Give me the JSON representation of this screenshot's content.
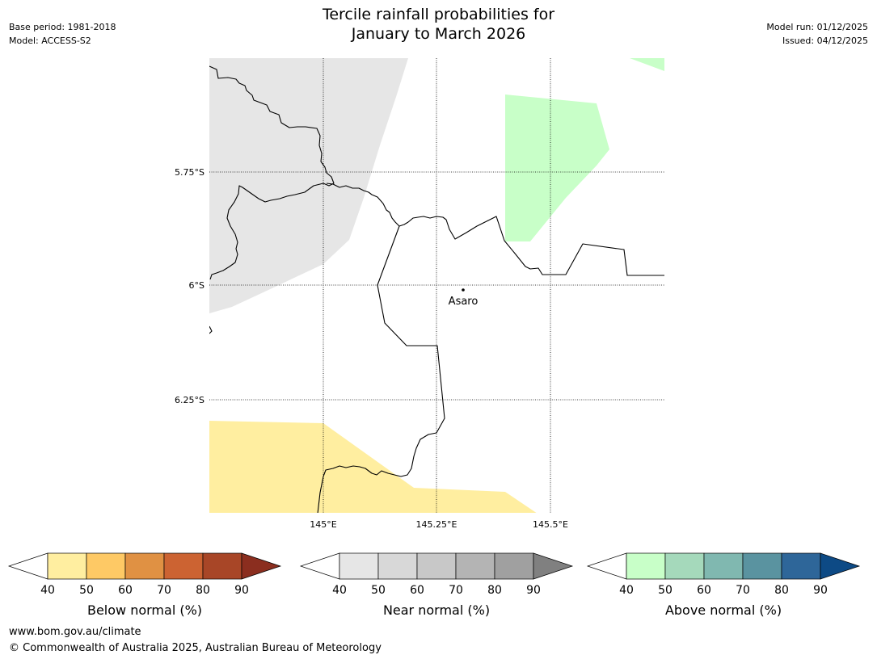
{
  "header": {
    "title_line1": "Tercile rainfall probabilities for",
    "title_line2": "January to March 2026",
    "base_period": "Base period: 1981-2018",
    "model": "Model: ACCESS-S2",
    "model_run": "Model run: 01/12/2025",
    "issued": "Issued: 04/12/2025"
  },
  "map": {
    "lat_labels": [
      "5.75°S",
      "6°S",
      "6.25°S"
    ],
    "lon_labels": [
      "145°E",
      "145.25°E",
      "145.5°E"
    ],
    "place_name": "Asaro"
  },
  "legends": [
    {
      "name": "below",
      "title": "Below normal (%)",
      "ticks": [
        "40",
        "50",
        "60",
        "70",
        "80",
        "90"
      ],
      "colors": [
        "#ffeea0",
        "#fec965",
        "#e09143",
        "#cc6332",
        "#a84627",
        "#8b2e1f"
      ]
    },
    {
      "name": "near",
      "title": "Near normal (%)",
      "ticks": [
        "40",
        "50",
        "60",
        "70",
        "80",
        "90"
      ],
      "colors": [
        "#e6e6e6",
        "#d8d8d8",
        "#c8c8c8",
        "#b4b4b4",
        "#a0a0a0",
        "#808080"
      ]
    },
    {
      "name": "above",
      "title": "Above normal (%)",
      "ticks": [
        "40",
        "50",
        "60",
        "70",
        "80",
        "90"
      ],
      "colors": [
        "#c8ffc8",
        "#a5d9bb",
        "#80b8b0",
        "#5a93a0",
        "#2e6699",
        "#0d4a85"
      ]
    }
  ],
  "footer": {
    "url": "www.bom.gov.au/climate",
    "copyright": "© Commonwealth of Australia 2025, Australian Bureau of Meteorology"
  }
}
